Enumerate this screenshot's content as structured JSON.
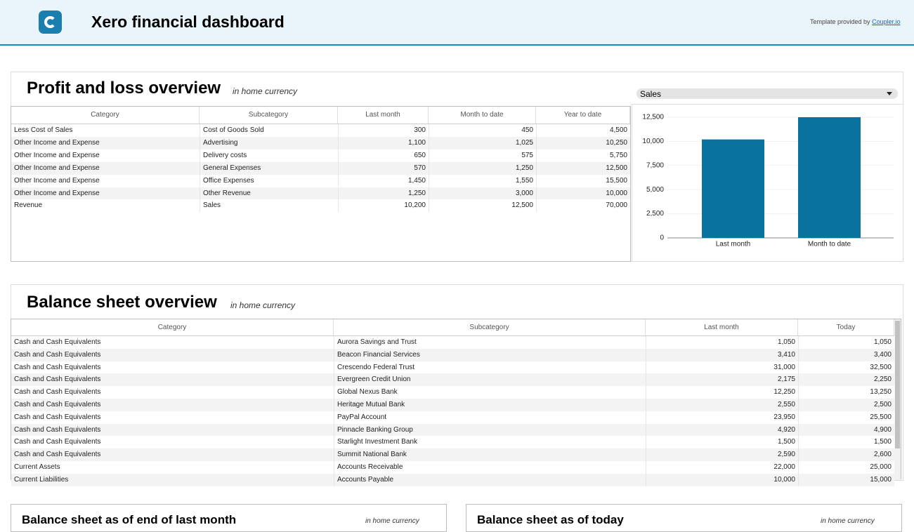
{
  "header": {
    "title": "Xero financial dashboard",
    "credit_prefix": "Template provided by",
    "credit_link": "Coupler.io"
  },
  "profit_loss": {
    "title": "Profit and loss overview",
    "note": "in home currency",
    "dropdown": "Sales",
    "table": {
      "columns": [
        "Category",
        "Subcategory",
        "Last month",
        "Month to date",
        "Year to date"
      ],
      "rows": [
        [
          "Less Cost of Sales",
          "Cost of Goods Sold",
          "300",
          "450",
          "4,500"
        ],
        [
          "Other Income and Expense",
          "Advertising",
          "1,100",
          "1,025",
          "10,250"
        ],
        [
          "Other Income and Expense",
          "Delivery costs",
          "650",
          "575",
          "5,750"
        ],
        [
          "Other Income and Expense",
          "General Expenses",
          "570",
          "1,250",
          "12,500"
        ],
        [
          "Other Income and Expense",
          "Office Expenses",
          "1,450",
          "1,550",
          "15,500"
        ],
        [
          "Other Income and Expense",
          "Other Revenue",
          "1,250",
          "3,000",
          "10,000"
        ],
        [
          "Revenue",
          "Sales",
          "10,200",
          "12,500",
          "70,000"
        ]
      ]
    }
  },
  "chart_data": {
    "type": "bar",
    "categories": [
      "Last month",
      "Month to date"
    ],
    "values": [
      10200,
      12500
    ],
    "color": "#0a729f",
    "ylim": [
      0,
      12500
    ],
    "yticks": [
      0,
      {
        "value": 2500,
        "label": "2,500"
      },
      {
        "value": 5000,
        "label": "5,000"
      },
      {
        "value": 7500,
        "label": "7,500"
      },
      {
        "value": 10000,
        "label": "10,000"
      },
      {
        "value": 12500,
        "label": "12,500"
      }
    ],
    "grid": true
  },
  "balance_sheet": {
    "title": "Balance sheet overview",
    "note": "in home currency",
    "table": {
      "columns": [
        "Category",
        "Subcategory",
        "Last month",
        "Today"
      ],
      "rows": [
        [
          "Cash and Cash Equivalents",
          "Aurora Savings and Trust",
          "1,050",
          "1,050"
        ],
        [
          "Cash and Cash Equivalents",
          "Beacon Financial Services",
          "3,410",
          "3,400"
        ],
        [
          "Cash and Cash Equivalents",
          "Crescendo Federal Trust",
          "31,000",
          "32,500"
        ],
        [
          "Cash and Cash Equivalents",
          "Evergreen Credit Union",
          "2,175",
          "2,250"
        ],
        [
          "Cash and Cash Equivalents",
          "Global Nexus Bank",
          "12,250",
          "13,250"
        ],
        [
          "Cash and Cash Equivalents",
          "Heritage Mutual Bank",
          "2,550",
          "2,500"
        ],
        [
          "Cash and Cash Equivalents",
          "PayPal Account",
          "23,950",
          "25,500"
        ],
        [
          "Cash and Cash Equivalents",
          "Pinnacle Banking Group",
          "4,920",
          "4,900"
        ],
        [
          "Cash and Cash Equivalents",
          "Starlight Investment Bank",
          "1,500",
          "1,500"
        ],
        [
          "Cash and Cash Equivalents",
          "Summit National Bank",
          "2,590",
          "2,600"
        ],
        [
          "Current Assets",
          "Accounts Receivable",
          "22,000",
          "25,000"
        ],
        [
          "Current Liabilities",
          "Accounts Payable",
          "10,000",
          "15,000"
        ]
      ]
    }
  },
  "last_month": {
    "title": "Balance sheet as of end of last month",
    "note": "in home currency"
  },
  "today": {
    "title": "Balance sheet as of today",
    "note": "in home currency"
  }
}
